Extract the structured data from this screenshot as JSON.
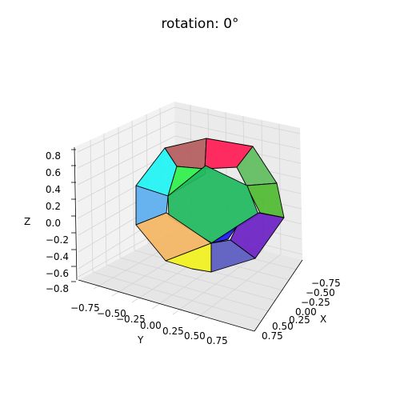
{
  "chart_data": {
    "type": "3d-polyhedron",
    "title": "rotation: 0°",
    "xlabel": "X",
    "ylabel": "Y",
    "zlabel": "Z",
    "x_ticks": [
      "−0.75",
      "−0.50",
      "−0.25",
      "0.00",
      "0.25",
      "0.50",
      "0.75"
    ],
    "y_ticks": [
      "−0.75",
      "−0.50",
      "−0.25",
      "0.00",
      "0.25",
      "0.50",
      "0.75"
    ],
    "z_ticks": [
      "−0.8",
      "−0.6",
      "−0.4",
      "−0.2",
      "0.0",
      "0.2",
      "0.4",
      "0.6",
      "0.8"
    ],
    "grid": true,
    "faces": [
      {
        "color": "#b35c5c"
      },
      {
        "color": "#ff1a55"
      },
      {
        "color": "#1ff3f3"
      },
      {
        "color": "#2ef04a"
      },
      {
        "color": "#5ebd5e"
      },
      {
        "color": "#4fba30"
      },
      {
        "color": "#5aaef0"
      },
      {
        "color": "#1fb85e"
      },
      {
        "color": "#f4b562"
      },
      {
        "color": "#f3f21d"
      },
      {
        "color": "#1a1af5"
      },
      {
        "color": "#6a1fc4"
      },
      {
        "color": "#5a5ac0"
      }
    ]
  }
}
